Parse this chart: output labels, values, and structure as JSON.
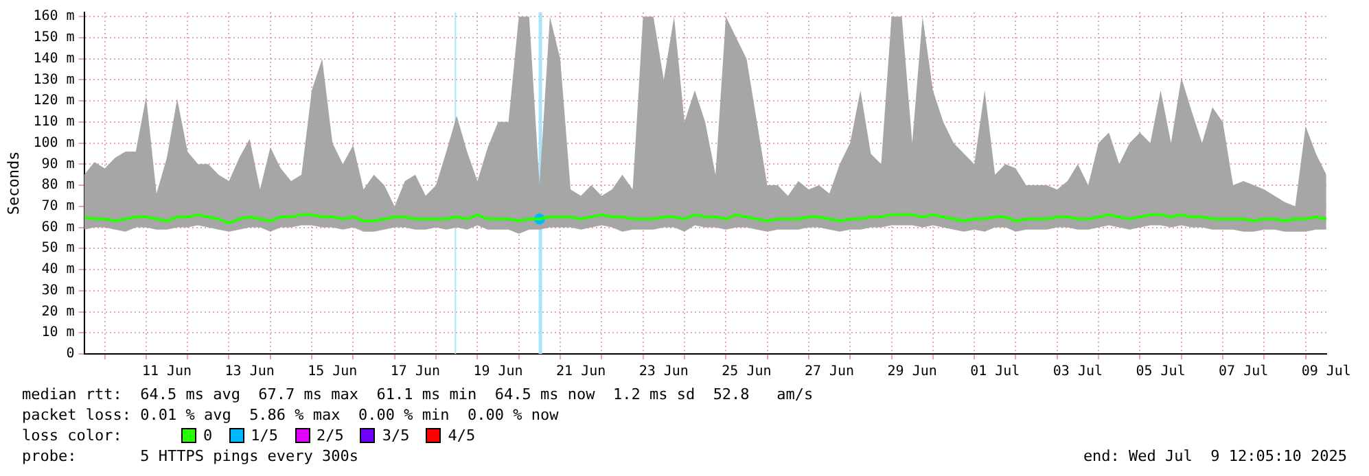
{
  "chart_data": {
    "type": "line",
    "ylabel": "Seconds",
    "legend_title": "loss color:",
    "legend": "bottom",
    "grid": true,
    "marker": "none",
    "line_style": "solid",
    "xlim": [
      "2025-06-09T12:05",
      "2025-07-09T12:05"
    ],
    "ylim": [
      0,
      162
    ],
    "yticks": [
      {
        "value": 0,
        "label": "0"
      },
      {
        "value": 10,
        "label": "10 m"
      },
      {
        "value": 20,
        "label": "20 m"
      },
      {
        "value": 30,
        "label": "30 m"
      },
      {
        "value": 40,
        "label": "40 m"
      },
      {
        "value": 50,
        "label": "50 m"
      },
      {
        "value": 60,
        "label": "60 m"
      },
      {
        "value": 70,
        "label": "70 m"
      },
      {
        "value": 80,
        "label": "80 m"
      },
      {
        "value": 90,
        "label": "90 m"
      },
      {
        "value": 100,
        "label": "100 m"
      },
      {
        "value": 110,
        "label": "110 m"
      },
      {
        "value": 120,
        "label": "120 m"
      },
      {
        "value": 130,
        "label": "130 m"
      },
      {
        "value": 140,
        "label": "140 m"
      },
      {
        "value": 150,
        "label": "150 m"
      },
      {
        "value": 160,
        "label": "160 m"
      }
    ],
    "xticks": [
      {
        "value": "2025-06-10",
        "label": null
      },
      {
        "value": "2025-06-11",
        "label": null
      },
      {
        "value": "2025-06-11T12:00",
        "label": "11 Jun"
      },
      {
        "value": "2025-06-12",
        "label": null
      },
      {
        "value": "2025-06-13",
        "label": null
      },
      {
        "value": "2025-06-13T12:00",
        "label": "13 Jun"
      },
      {
        "value": "2025-06-14",
        "label": null
      },
      {
        "value": "2025-06-15",
        "label": null
      },
      {
        "value": "2025-06-15T12:00",
        "label": "15 Jun"
      },
      {
        "value": "2025-06-16",
        "label": null
      },
      {
        "value": "2025-06-17",
        "label": null
      },
      {
        "value": "2025-06-17T12:00",
        "label": "17 Jun"
      },
      {
        "value": "2025-06-18",
        "label": null
      },
      {
        "value": "2025-06-19",
        "label": null
      },
      {
        "value": "2025-06-19T12:00",
        "label": "19 Jun"
      },
      {
        "value": "2025-06-20",
        "label": null
      },
      {
        "value": "2025-06-21",
        "label": null
      },
      {
        "value": "2025-06-21T12:00",
        "label": "21 Jun"
      },
      {
        "value": "2025-06-22",
        "label": null
      },
      {
        "value": "2025-06-23",
        "label": null
      },
      {
        "value": "2025-06-23T12:00",
        "label": "23 Jun"
      },
      {
        "value": "2025-06-24",
        "label": null
      },
      {
        "value": "2025-06-25",
        "label": null
      },
      {
        "value": "2025-06-25T12:00",
        "label": "25 Jun"
      },
      {
        "value": "2025-06-26",
        "label": null
      },
      {
        "value": "2025-06-27",
        "label": null
      },
      {
        "value": "2025-06-27T12:00",
        "label": "27 Jun"
      },
      {
        "value": "2025-06-28",
        "label": null
      },
      {
        "value": "2025-06-29",
        "label": null
      },
      {
        "value": "2025-06-29T12:00",
        "label": "29 Jun"
      },
      {
        "value": "2025-06-30",
        "label": null
      },
      {
        "value": "2025-07-01",
        "label": null
      },
      {
        "value": "2025-07-01T12:00",
        "label": "01 Jul"
      },
      {
        "value": "2025-07-02",
        "label": null
      },
      {
        "value": "2025-07-03",
        "label": null
      },
      {
        "value": "2025-07-03T12:00",
        "label": "03 Jul"
      },
      {
        "value": "2025-07-04",
        "label": null
      },
      {
        "value": "2025-07-05",
        "label": null
      },
      {
        "value": "2025-07-05T12:00",
        "label": "05 Jul"
      },
      {
        "value": "2025-07-06",
        "label": null
      },
      {
        "value": "2025-07-07",
        "label": null
      },
      {
        "value": "2025-07-07T12:00",
        "label": "07 Jul"
      },
      {
        "value": "2025-07-08",
        "label": null
      },
      {
        "value": "2025-07-09",
        "label": null
      },
      {
        "value": "2025-07-09T12:00",
        "label": "09 Jul"
      }
    ],
    "x": [
      "2025-06-09T12:05",
      "2025-06-09T18:00",
      "2025-06-10T00:00",
      "2025-06-10T06:00",
      "2025-06-10T12:00",
      "2025-06-10T18:00",
      "2025-06-11T00:00",
      "2025-06-11T06:00",
      "2025-06-11T12:00",
      "2025-06-11T18:00",
      "2025-06-12T00:00",
      "2025-06-12T06:00",
      "2025-06-12T12:00",
      "2025-06-12T18:00",
      "2025-06-13T00:00",
      "2025-06-13T06:00",
      "2025-06-13T12:00",
      "2025-06-13T18:00",
      "2025-06-14T00:00",
      "2025-06-14T06:00",
      "2025-06-14T12:00",
      "2025-06-14T18:00",
      "2025-06-15T00:00",
      "2025-06-15T06:00",
      "2025-06-15T12:00",
      "2025-06-15T18:00",
      "2025-06-16T00:00",
      "2025-06-16T06:00",
      "2025-06-16T12:00",
      "2025-06-16T18:00",
      "2025-06-17T00:00",
      "2025-06-17T06:00",
      "2025-06-17T12:00",
      "2025-06-17T18:00",
      "2025-06-18T00:00",
      "2025-06-18T06:00",
      "2025-06-18T12:00",
      "2025-06-18T18:00",
      "2025-06-19T00:00",
      "2025-06-19T06:00",
      "2025-06-19T12:00",
      "2025-06-19T18:00",
      "2025-06-20T00:00",
      "2025-06-20T06:00",
      "2025-06-20T12:00",
      "2025-06-20T18:00",
      "2025-06-21T00:00",
      "2025-06-21T06:00",
      "2025-06-21T12:00",
      "2025-06-21T18:00",
      "2025-06-22T00:00",
      "2025-06-22T06:00",
      "2025-06-22T12:00",
      "2025-06-22T18:00",
      "2025-06-23T00:00",
      "2025-06-23T06:00",
      "2025-06-23T12:00",
      "2025-06-23T18:00",
      "2025-06-24T00:00",
      "2025-06-24T06:00",
      "2025-06-24T12:00",
      "2025-06-24T18:00",
      "2025-06-25T00:00",
      "2025-06-25T06:00",
      "2025-06-25T12:00",
      "2025-06-25T18:00",
      "2025-06-26T00:00",
      "2025-06-26T06:00",
      "2025-06-26T12:00",
      "2025-06-26T18:00",
      "2025-06-27T00:00",
      "2025-06-27T06:00",
      "2025-06-27T12:00",
      "2025-06-27T18:00",
      "2025-06-28T00:00",
      "2025-06-28T06:00",
      "2025-06-28T12:00",
      "2025-06-28T18:00",
      "2025-06-29T00:00",
      "2025-06-29T06:00",
      "2025-06-29T12:00",
      "2025-06-29T18:00",
      "2025-06-30T00:00",
      "2025-06-30T06:00",
      "2025-06-30T12:00",
      "2025-06-30T18:00",
      "2025-07-01T00:00",
      "2025-07-01T06:00",
      "2025-07-01T12:00",
      "2025-07-01T18:00",
      "2025-07-02T00:00",
      "2025-07-02T06:00",
      "2025-07-02T12:00",
      "2025-07-02T18:00",
      "2025-07-03T00:00",
      "2025-07-03T06:00",
      "2025-07-03T12:00",
      "2025-07-03T18:00",
      "2025-07-04T00:00",
      "2025-07-04T06:00",
      "2025-07-04T12:00",
      "2025-07-04T18:00",
      "2025-07-05T00:00",
      "2025-07-05T06:00",
      "2025-07-05T12:00",
      "2025-07-05T18:00",
      "2025-07-06T00:00",
      "2025-07-06T06:00",
      "2025-07-06T12:00",
      "2025-07-06T18:00",
      "2025-07-07T00:00",
      "2025-07-07T06:00",
      "2025-07-07T12:00",
      "2025-07-07T18:00",
      "2025-07-08T00:00",
      "2025-07-08T06:00",
      "2025-07-08T12:00",
      "2025-07-08T18:00",
      "2025-07-09T00:00",
      "2025-07-09T06:00",
      "2025-07-09T12:00"
    ],
    "series": [
      {
        "name": "0",
        "color": "#26ff00",
        "values": [
          65,
          64,
          64,
          63,
          64,
          65,
          65,
          64,
          63,
          65,
          65,
          66,
          65,
          64,
          62,
          64,
          65,
          64,
          63,
          65,
          65,
          66,
          66,
          65,
          65,
          64,
          65,
          63,
          63,
          64,
          65,
          65,
          64,
          64,
          64,
          64,
          65,
          64,
          66,
          64,
          64,
          64,
          63,
          64,
          64,
          65,
          65,
          65,
          64,
          65,
          66,
          65,
          65,
          64,
          64,
          64,
          65,
          65,
          64,
          66,
          65,
          65,
          64,
          66,
          65,
          64,
          63,
          64,
          64,
          64,
          65,
          65,
          64,
          63,
          64,
          64,
          65,
          65,
          66,
          66,
          66,
          65,
          66,
          65,
          64,
          63,
          64,
          64,
          65,
          65,
          63,
          64,
          64,
          64,
          65,
          65,
          64,
          64,
          65,
          66,
          65,
          64,
          65,
          66,
          66,
          65,
          66,
          65,
          65,
          64,
          64,
          64,
          64,
          63,
          64,
          64,
          63,
          64,
          64,
          65,
          64
        ],
        "lower": [
          59,
          60,
          60,
          59,
          58,
          60,
          60,
          59,
          59,
          60,
          60,
          61,
          60,
          59,
          58,
          59,
          60,
          60,
          58,
          60,
          60,
          61,
          61,
          60,
          60,
          59,
          60,
          58,
          58,
          59,
          60,
          60,
          59,
          59,
          60,
          59,
          60,
          59,
          61,
          59,
          59,
          59,
          57,
          59,
          59,
          60,
          60,
          60,
          59,
          60,
          61,
          60,
          58,
          59,
          59,
          59,
          60,
          60,
          58,
          61,
          60,
          60,
          59,
          60,
          60,
          59,
          58,
          59,
          59,
          59,
          60,
          60,
          59,
          58,
          59,
          59,
          60,
          60,
          61,
          61,
          61,
          60,
          61,
          60,
          59,
          58,
          59,
          58,
          60,
          60,
          58,
          59,
          59,
          59,
          60,
          60,
          59,
          59,
          60,
          61,
          60,
          59,
          60,
          61,
          61,
          60,
          61,
          60,
          60,
          59,
          59,
          59,
          58,
          58,
          59,
          59,
          58,
          58,
          58,
          59,
          59
        ],
        "upper": [
          85,
          91,
          88,
          93,
          96,
          96,
          122,
          76,
          93,
          121,
          96,
          90,
          90,
          85,
          82,
          93,
          102,
          78,
          98,
          88,
          82,
          85,
          125,
          140,
          100,
          90,
          99,
          78,
          85,
          80,
          70,
          82,
          85,
          75,
          80,
          96,
          113,
          96,
          82,
          98,
          110,
          110,
          160,
          160,
          80,
          160,
          140,
          78,
          75,
          80,
          75,
          78,
          85,
          78,
          160,
          160,
          130,
          160,
          110,
          125,
          110,
          85,
          160,
          150,
          140,
          110,
          80,
          80,
          75,
          82,
          78,
          80,
          76,
          90,
          100,
          125,
          95,
          90,
          160,
          160,
          100,
          160,
          125,
          110,
          100,
          95,
          90,
          125,
          85,
          90,
          88,
          80,
          80,
          80,
          78,
          82,
          90,
          80,
          100,
          105,
          90,
          100,
          105,
          100,
          125,
          100,
          131,
          115,
          100,
          117,
          110,
          80,
          82,
          80,
          78,
          75,
          72,
          70,
          108,
          95,
          85
        ]
      },
      {
        "name": "1/5",
        "color": "#00b8ff",
        "marker": "circle",
        "x": [
          "2025-06-20T12:00"
        ],
        "values": [
          64
        ]
      },
      {
        "name": "2/5",
        "color": "#e000ff",
        "values": [
          null,
          null,
          null,
          null,
          null,
          null,
          null,
          null,
          null,
          null,
          null,
          null,
          null,
          null,
          null,
          null,
          null,
          null,
          null,
          null,
          null,
          null,
          null,
          null,
          null,
          null,
          null,
          null,
          null,
          null,
          null,
          null,
          null,
          null,
          null,
          null,
          null,
          null,
          null,
          null,
          null,
          null,
          null,
          null,
          null,
          null,
          null,
          null,
          null,
          null,
          null,
          null,
          null,
          null,
          null,
          null,
          null,
          null,
          null,
          null,
          null,
          null,
          null,
          null,
          null,
          null,
          null,
          null,
          null,
          null,
          null,
          null,
          null,
          null,
          null,
          null,
          null,
          null,
          null,
          null,
          null,
          null,
          null,
          null,
          null,
          null,
          null,
          null,
          null,
          null,
          null,
          null,
          null,
          null,
          null,
          null,
          null,
          null,
          null,
          null,
          null,
          null,
          null,
          null,
          null,
          null,
          null,
          null,
          null,
          null,
          null,
          null,
          null,
          null,
          null,
          null,
          null,
          null,
          null,
          null,
          null
        ]
      },
      {
        "name": "3/5",
        "color": "#7000ff",
        "values": [
          null,
          null,
          null,
          null,
          null,
          null,
          null,
          null,
          null,
          null,
          null,
          null,
          null,
          null,
          null,
          null,
          null,
          null,
          null,
          null,
          null,
          null,
          null,
          null,
          null,
          null,
          null,
          null,
          null,
          null,
          null,
          null,
          null,
          null,
          null,
          null,
          null,
          null,
          null,
          null,
          null,
          null,
          null,
          null,
          null,
          null,
          null,
          null,
          null,
          null,
          null,
          null,
          null,
          null,
          null,
          null,
          null,
          null,
          null,
          null,
          null,
          null,
          null,
          null,
          null,
          null,
          null,
          null,
          null,
          null,
          null,
          null,
          null,
          null,
          null,
          null,
          null,
          null,
          null,
          null,
          null,
          null,
          null,
          null,
          null,
          null,
          null,
          null,
          null,
          null,
          null,
          null,
          null,
          null,
          null,
          null,
          null,
          null,
          null,
          null,
          null,
          null,
          null,
          null,
          null,
          null,
          null,
          null,
          null,
          null,
          null,
          null,
          null,
          null,
          null,
          null,
          null,
          null,
          null,
          null,
          null
        ]
      },
      {
        "name": "4/5",
        "color": "#ff0000",
        "values": [
          null,
          null,
          null,
          null,
          null,
          null,
          null,
          null,
          null,
          null,
          null,
          null,
          null,
          null,
          null,
          null,
          null,
          null,
          null,
          null,
          null,
          null,
          null,
          null,
          null,
          null,
          null,
          null,
          null,
          null,
          null,
          null,
          null,
          null,
          null,
          null,
          null,
          null,
          null,
          null,
          null,
          null,
          null,
          null,
          null,
          null,
          null,
          null,
          null,
          null,
          null,
          null,
          null,
          null,
          null,
          null,
          null,
          null,
          null,
          null,
          null,
          null,
          null,
          null,
          null,
          null,
          null,
          null,
          null,
          null,
          null,
          null,
          null,
          null,
          null,
          null,
          null,
          null,
          null,
          null,
          null,
          null,
          null,
          null,
          null,
          null,
          null,
          null,
          null,
          null,
          null,
          null,
          null,
          null,
          null,
          null,
          null,
          null,
          null,
          null,
          null,
          null,
          null,
          null,
          null,
          null,
          null,
          null,
          null,
          null,
          null,
          null,
          null,
          null,
          null,
          null,
          null,
          null,
          null,
          null,
          null
        ]
      }
    ],
    "bands": [
      {
        "axis": "x",
        "from": "2025-06-20T11:30",
        "to": "2025-06-20T13:30",
        "color": "#a8e4fa"
      }
    ],
    "ref_lines": [
      {
        "axis": "x",
        "value": "2025-06-18T11:15",
        "color": "#a8e4fa"
      }
    ],
    "annotations": [
      "median rtt:  64.5 ms avg  67.7 ms max  61.1 ms min  64.5 ms now  1.2 ms sd  52.8   am/s",
      "packet loss: 0.01 % avg  5.86 % max  0.00 % min  0.00 % now",
      "probe:       5 HTTPS pings every 300s",
      "end: Wed Jul  9 12:05:10 2025"
    ]
  }
}
